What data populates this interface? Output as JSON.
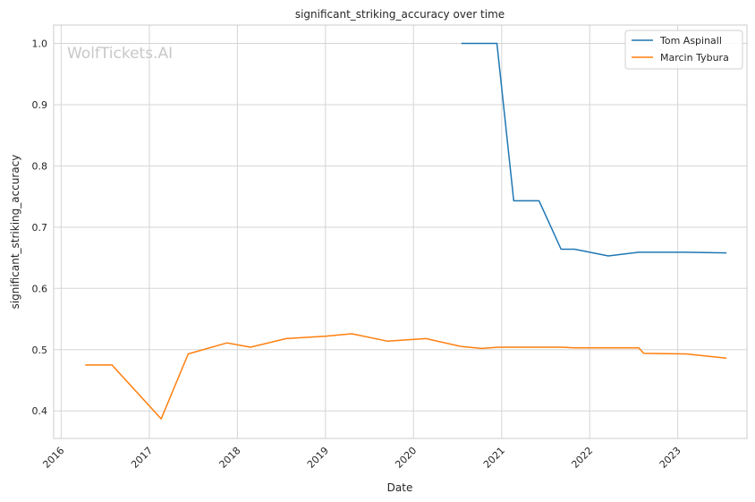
{
  "watermark": "WolfTickets.AI",
  "colors": {
    "series_0": "#1f77b4",
    "series_1": "#ff7f0e",
    "grid": "#d5d5d5",
    "frame": "#cccccc"
  },
  "chart_data": {
    "type": "line",
    "title": "significant_striking_accuracy over time",
    "xlabel": "Date",
    "ylabel": "significant_striking_accuracy",
    "x_type": "date",
    "xlim": [
      "2015-12-01",
      "2023-10-15"
    ],
    "ylim": [
      0.355,
      1.03
    ],
    "x_ticks": [
      "2016",
      "2017",
      "2018",
      "2019",
      "2020",
      "2021",
      "2022",
      "2023"
    ],
    "y_ticks": [
      "0.4",
      "0.5",
      "0.6",
      "0.7",
      "0.8",
      "0.9",
      "1.0"
    ],
    "grid": true,
    "legend_position": "top-right",
    "series": [
      {
        "name": "Tom Aspinall",
        "color": "#1f77b4",
        "points": [
          [
            "2020-07-18",
            1.0
          ],
          [
            "2020-12-12",
            1.0
          ],
          [
            "2021-02-20",
            0.743
          ],
          [
            "2021-06-05",
            0.743
          ],
          [
            "2021-09-04",
            0.664
          ],
          [
            "2021-10-30",
            0.664
          ],
          [
            "2022-03-19",
            0.653
          ],
          [
            "2022-07-23",
            0.659
          ],
          [
            "2023-01-28",
            0.659
          ],
          [
            "2023-07-22",
            0.658
          ]
        ]
      },
      {
        "name": "Marcin Tybura",
        "color": "#ff7f0e",
        "points": [
          [
            "2016-04-10",
            0.475
          ],
          [
            "2016-07-30",
            0.475
          ],
          [
            "2017-02-19",
            0.387
          ],
          [
            "2017-06-11",
            0.493
          ],
          [
            "2017-11-19",
            0.511
          ],
          [
            "2018-02-24",
            0.504
          ],
          [
            "2018-07-22",
            0.518
          ],
          [
            "2019-01-01",
            0.522
          ],
          [
            "2019-04-20",
            0.526
          ],
          [
            "2019-09-14",
            0.514
          ],
          [
            "2020-02-22",
            0.518
          ],
          [
            "2020-07-18",
            0.505
          ],
          [
            "2020-10-10",
            0.502
          ],
          [
            "2020-12-19",
            0.504
          ],
          [
            "2021-06-19",
            0.504
          ],
          [
            "2021-09-04",
            0.504
          ],
          [
            "2021-10-30",
            0.503
          ],
          [
            "2022-02-26",
            0.503
          ],
          [
            "2022-07-23",
            0.503
          ],
          [
            "2022-08-13",
            0.494
          ],
          [
            "2023-02-04",
            0.493
          ],
          [
            "2023-07-22",
            0.486
          ]
        ]
      }
    ]
  }
}
